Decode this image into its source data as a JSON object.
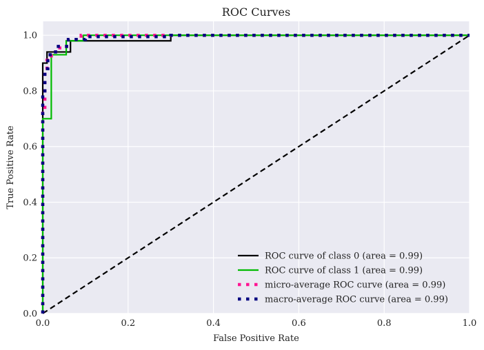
{
  "chart_data": {
    "type": "line",
    "title": "ROC Curves",
    "xlabel": "False Positive Rate",
    "ylabel": "True Positive Rate",
    "xlim": [
      0.0,
      1.0
    ],
    "ylim": [
      0.0,
      1.05
    ],
    "xticks": [
      "0.0",
      "0.2",
      "0.4",
      "0.6",
      "0.8",
      "1.0"
    ],
    "yticks": [
      "0.0",
      "0.2",
      "0.4",
      "0.6",
      "0.8",
      "1.0"
    ],
    "grid": true,
    "legend_position": "bottom-right",
    "series": [
      {
        "name": "ROC curve of class 0 (area = 0.99)",
        "color": "#000000",
        "style": "solid",
        "x": [
          0.0,
          0.0,
          0.01,
          0.01,
          0.065,
          0.065,
          0.3,
          0.3,
          1.0
        ],
        "y": [
          0.0,
          0.9,
          0.9,
          0.94,
          0.94,
          0.98,
          0.98,
          1.0,
          1.0
        ]
      },
      {
        "name": "ROC curve of class 1 (area = 0.99)",
        "color": "#00bb00",
        "style": "solid",
        "x": [
          0.0,
          0.0,
          0.02,
          0.02,
          0.055,
          0.055,
          0.095,
          0.095,
          1.0
        ],
        "y": [
          0.0,
          0.7,
          0.7,
          0.93,
          0.93,
          0.98,
          0.98,
          1.0,
          1.0
        ]
      },
      {
        "name": "micro-average ROC curve (area = 0.99)",
        "color": "#ff1493",
        "style": "dotted",
        "x": [
          0.0,
          0.0,
          0.005,
          0.005,
          0.01,
          0.01,
          0.02,
          0.02,
          0.04,
          0.04,
          0.06,
          0.06,
          0.09,
          0.09,
          1.0
        ],
        "y": [
          0.0,
          0.72,
          0.72,
          0.87,
          0.87,
          0.91,
          0.91,
          0.94,
          0.94,
          0.96,
          0.96,
          0.985,
          0.985,
          1.0,
          1.0
        ]
      },
      {
        "name": "macro-average ROC curve (area = 0.99)",
        "color": "#000080",
        "style": "dotted",
        "x": [
          0.0,
          0.0,
          0.005,
          0.005,
          0.012,
          0.012,
          0.03,
          0.03,
          0.06,
          0.06,
          0.1,
          0.1,
          0.3,
          0.3,
          1.0
        ],
        "y": [
          0.0,
          0.8,
          0.8,
          0.88,
          0.88,
          0.93,
          0.93,
          0.96,
          0.96,
          0.985,
          0.985,
          0.995,
          0.995,
          1.0,
          1.0
        ]
      },
      {
        "color": "#000000",
        "style": "dashed",
        "x": [
          0.0,
          1.0
        ],
        "y": [
          0.0,
          1.0
        ]
      }
    ]
  }
}
